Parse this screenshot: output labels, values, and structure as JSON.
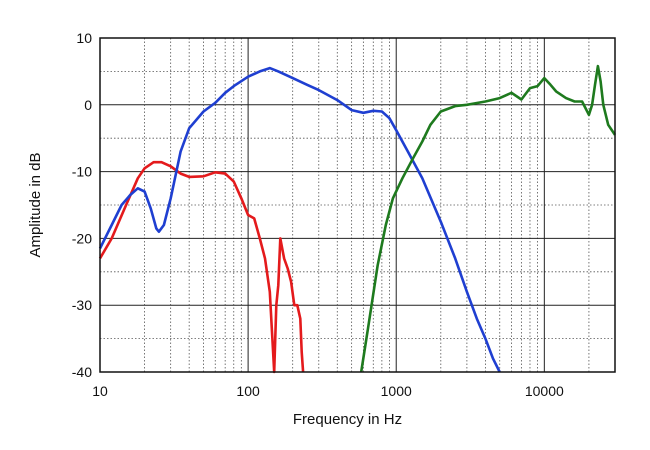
{
  "chart_data": {
    "type": "line",
    "xlabel": "Frequency in Hz",
    "ylabel": "Amplitude in dB",
    "xscale": "log",
    "xlim": [
      10,
      30000
    ],
    "ylim": [
      -40,
      10
    ],
    "xticks": [
      10,
      100,
      1000,
      10000
    ],
    "xtick_labels": [
      "10",
      "100",
      "1000",
      "10000"
    ],
    "yticks": [
      10,
      0,
      -10,
      -20,
      -30,
      -40
    ],
    "ytick_labels": [
      "10",
      "0",
      "-10",
      "-20",
      "-30",
      "-40"
    ],
    "grid": true,
    "series": [
      {
        "color": "#e41a1c",
        "points": [
          [
            10,
            -23
          ],
          [
            12,
            -20
          ],
          [
            15,
            -15
          ],
          [
            18,
            -11
          ],
          [
            20,
            -9.5
          ],
          [
            23,
            -8.6
          ],
          [
            26,
            -8.6
          ],
          [
            30,
            -9.2
          ],
          [
            35,
            -10.3
          ],
          [
            40,
            -10.8
          ],
          [
            50,
            -10.7
          ],
          [
            60,
            -10.1
          ],
          [
            70,
            -10.3
          ],
          [
            80,
            -11.5
          ],
          [
            90,
            -14
          ],
          [
            100,
            -16.5
          ],
          [
            110,
            -17
          ],
          [
            120,
            -20
          ],
          [
            130,
            -23
          ],
          [
            140,
            -28
          ],
          [
            145,
            -34
          ],
          [
            150,
            -40
          ],
          [
            155,
            -30
          ],
          [
            160,
            -27
          ],
          [
            165,
            -20
          ],
          [
            175,
            -23
          ],
          [
            185,
            -24.5
          ],
          [
            195,
            -26.5
          ],
          [
            205,
            -30
          ],
          [
            215,
            -30
          ],
          [
            225,
            -32
          ],
          [
            230,
            -37
          ],
          [
            235,
            -40
          ]
        ]
      },
      {
        "color": "#1f3fd1",
        "points": [
          [
            10,
            -21.5
          ],
          [
            12,
            -18
          ],
          [
            14,
            -15
          ],
          [
            16,
            -13.5
          ],
          [
            18,
            -12.5
          ],
          [
            20,
            -13
          ],
          [
            22,
            -15.5
          ],
          [
            24,
            -18.5
          ],
          [
            25,
            -19
          ],
          [
            27,
            -18
          ],
          [
            30,
            -14
          ],
          [
            35,
            -7
          ],
          [
            40,
            -3.5
          ],
          [
            50,
            -1
          ],
          [
            60,
            0.3
          ],
          [
            70,
            1.8
          ],
          [
            80,
            2.8
          ],
          [
            100,
            4.2
          ],
          [
            120,
            5
          ],
          [
            140,
            5.5
          ],
          [
            160,
            5
          ],
          [
            200,
            4
          ],
          [
            250,
            3
          ],
          [
            300,
            2.2
          ],
          [
            400,
            0.7
          ],
          [
            500,
            -0.8
          ],
          [
            600,
            -1.2
          ],
          [
            700,
            -0.9
          ],
          [
            800,
            -1
          ],
          [
            900,
            -2
          ],
          [
            1000,
            -3.8
          ],
          [
            1200,
            -7
          ],
          [
            1500,
            -11
          ],
          [
            2000,
            -17.5
          ],
          [
            2500,
            -23
          ],
          [
            3000,
            -28
          ],
          [
            3500,
            -32
          ],
          [
            4000,
            -35
          ],
          [
            4500,
            -38
          ],
          [
            5000,
            -40
          ]
        ]
      },
      {
        "color": "#1e7a1e",
        "points": [
          [
            580,
            -40
          ],
          [
            650,
            -33
          ],
          [
            750,
            -24
          ],
          [
            850,
            -18
          ],
          [
            950,
            -14
          ],
          [
            1100,
            -11
          ],
          [
            1300,
            -8
          ],
          [
            1500,
            -5.5
          ],
          [
            1700,
            -3
          ],
          [
            2000,
            -1
          ],
          [
            2500,
            -0.2
          ],
          [
            3000,
            0
          ],
          [
            4000,
            0.5
          ],
          [
            5000,
            1
          ],
          [
            6000,
            1.8
          ],
          [
            7000,
            0.8
          ],
          [
            8000,
            2.5
          ],
          [
            9000,
            2.8
          ],
          [
            10000,
            4
          ],
          [
            11000,
            3
          ],
          [
            12000,
            2
          ],
          [
            14000,
            1
          ],
          [
            16000,
            0.5
          ],
          [
            18000,
            0.5
          ],
          [
            20000,
            -1.5
          ],
          [
            21000,
            0
          ],
          [
            22000,
            3
          ],
          [
            23000,
            5.8
          ],
          [
            24000,
            3.5
          ],
          [
            25000,
            0
          ],
          [
            27000,
            -3
          ],
          [
            30000,
            -4.5
          ]
        ]
      }
    ]
  }
}
